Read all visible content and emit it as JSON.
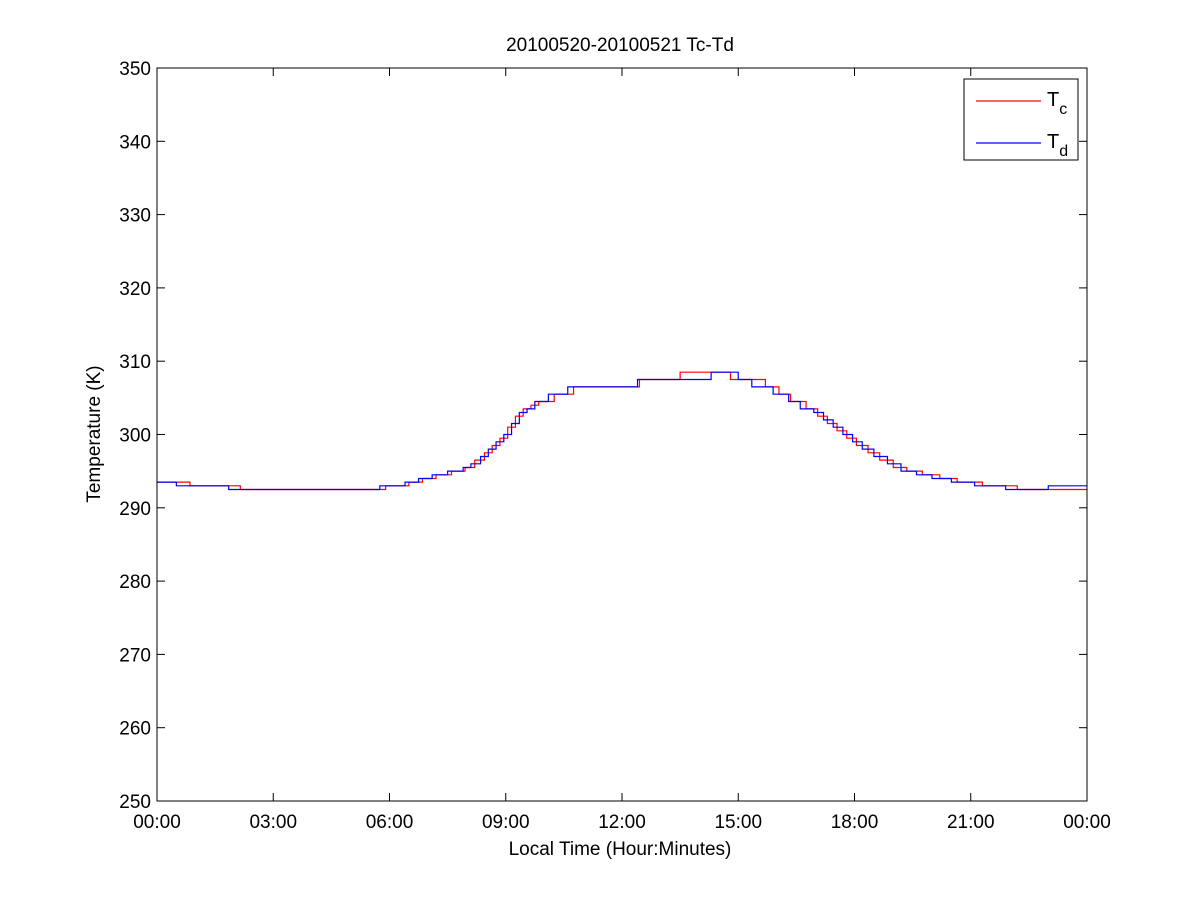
{
  "chart_data": {
    "type": "line",
    "title": "20100520-20100521 Tc-Td",
    "xlabel": "Local Time (Hour:Minutes)",
    "ylabel": "Temperature (K)",
    "xlim": [
      0,
      24
    ],
    "ylim": [
      250,
      350
    ],
    "x_tick_values": [
      0,
      3,
      6,
      9,
      12,
      15,
      18,
      21,
      24
    ],
    "x_tick_labels": [
      "00:00",
      "03:00",
      "06:00",
      "09:00",
      "12:00",
      "15:00",
      "18:00",
      "21:00",
      "00:00"
    ],
    "y_tick_values": [
      250,
      260,
      270,
      280,
      290,
      300,
      310,
      320,
      330,
      340,
      350
    ],
    "y_tick_labels": [
      "250",
      "260",
      "270",
      "280",
      "290",
      "300",
      "310",
      "320",
      "330",
      "340",
      "350"
    ],
    "grid": false,
    "legend_position": "top-right",
    "series": [
      {
        "name": "T",
        "subscript": "c",
        "color": "#ff0000",
        "x": [
          0,
          0.6,
          0.6,
          0.85,
          0.85,
          1.9,
          1.9,
          2.15,
          2.15,
          5.9,
          5.9,
          6.5,
          6.5,
          6.85,
          6.85,
          7.2,
          7.2,
          7.6,
          7.6,
          7.95,
          7.95,
          8.2,
          8.2,
          8.45,
          8.45,
          8.65,
          8.65,
          8.85,
          8.85,
          9.05,
          9.05,
          9.25,
          9.25,
          9.45,
          9.45,
          9.65,
          9.65,
          9.85,
          9.85,
          10.25,
          10.25,
          10.75,
          10.75,
          12.45,
          12.45,
          13.5,
          13.5,
          14.0,
          14.0,
          14.8,
          14.8,
          15.05,
          15.05,
          15.7,
          15.7,
          16.05,
          16.05,
          16.35,
          16.35,
          16.75,
          16.75,
          17.05,
          17.05,
          17.3,
          17.3,
          17.55,
          17.55,
          17.8,
          17.8,
          18.05,
          18.05,
          18.35,
          18.35,
          18.65,
          18.65,
          19.0,
          19.0,
          19.35,
          19.35,
          19.75,
          19.75,
          20.2,
          20.2,
          20.65,
          20.65,
          21.3,
          21.3,
          22.2,
          22.2,
          24
        ],
        "y": [
          293.5,
          293.5,
          293.5,
          293.5,
          293.0,
          293.0,
          293.0,
          293.0,
          292.5,
          292.5,
          293.0,
          293.0,
          293.5,
          293.5,
          294.0,
          294.0,
          294.5,
          294.5,
          295.0,
          295.0,
          295.5,
          295.5,
          296.5,
          296.5,
          297.5,
          297.5,
          298.5,
          298.5,
          299.5,
          299.5,
          301.0,
          301.0,
          302.5,
          302.5,
          303.5,
          303.5,
          304.0,
          304.0,
          304.5,
          304.5,
          305.5,
          305.5,
          306.5,
          306.5,
          307.5,
          307.5,
          308.5,
          308.5,
          308.5,
          308.5,
          307.5,
          307.5,
          307.5,
          307.5,
          306.5,
          306.5,
          305.5,
          305.5,
          304.5,
          304.5,
          303.5,
          303.5,
          302.5,
          302.5,
          301.5,
          301.5,
          300.5,
          300.5,
          299.5,
          299.5,
          298.5,
          298.5,
          297.5,
          297.5,
          296.5,
          296.5,
          295.5,
          295.5,
          295.0,
          295.0,
          294.5,
          294.5,
          294.0,
          294.0,
          293.5,
          293.5,
          293.0,
          293.0,
          292.5,
          292.5
        ]
      },
      {
        "name": "T",
        "subscript": "d",
        "color": "#0000ff",
        "x": [
          0,
          0.5,
          0.5,
          1.85,
          1.85,
          5.75,
          5.75,
          6.4,
          6.4,
          6.75,
          6.75,
          7.1,
          7.1,
          7.5,
          7.5,
          7.9,
          7.9,
          8.1,
          8.1,
          8.35,
          8.35,
          8.55,
          8.55,
          8.75,
          8.75,
          8.95,
          8.95,
          9.15,
          9.15,
          9.35,
          9.35,
          9.55,
          9.55,
          9.75,
          9.75,
          10.1,
          10.1,
          10.6,
          10.6,
          12.4,
          12.4,
          13.5,
          13.5,
          14.3,
          14.3,
          14.7,
          14.7,
          15.0,
          15.0,
          15.35,
          15.35,
          15.9,
          15.9,
          16.3,
          16.3,
          16.6,
          16.6,
          16.95,
          16.95,
          17.2,
          17.2,
          17.45,
          17.45,
          17.7,
          17.7,
          17.95,
          17.95,
          18.2,
          18.2,
          18.5,
          18.5,
          18.85,
          18.85,
          19.2,
          19.2,
          19.6,
          19.6,
          20.0,
          20.0,
          20.5,
          20.5,
          21.1,
          21.1,
          21.9,
          21.9,
          23.0,
          23.0,
          24
        ],
        "y": [
          293.5,
          293.5,
          293.0,
          293.0,
          292.5,
          292.5,
          293.0,
          293.0,
          293.5,
          293.5,
          294.0,
          294.0,
          294.5,
          294.5,
          295.0,
          295.0,
          295.5,
          295.5,
          296.0,
          296.0,
          297.0,
          297.0,
          298.0,
          298.0,
          299.0,
          299.0,
          300.0,
          300.0,
          301.5,
          301.5,
          303.0,
          303.0,
          303.5,
          303.5,
          304.5,
          304.5,
          305.5,
          305.5,
          306.5,
          306.5,
          307.5,
          307.5,
          307.5,
          307.5,
          308.5,
          308.5,
          308.5,
          308.5,
          307.5,
          307.5,
          306.5,
          306.5,
          305.5,
          305.5,
          304.5,
          304.5,
          303.5,
          303.5,
          303.0,
          303.0,
          302.0,
          302.0,
          301.0,
          301.0,
          300.0,
          300.0,
          299.0,
          299.0,
          298.0,
          298.0,
          297.0,
          297.0,
          296.0,
          296.0,
          295.0,
          295.0,
          294.5,
          294.5,
          294.0,
          294.0,
          293.5,
          293.5,
          293.0,
          293.0,
          292.5,
          292.5,
          293.0,
          293.0
        ]
      }
    ]
  }
}
